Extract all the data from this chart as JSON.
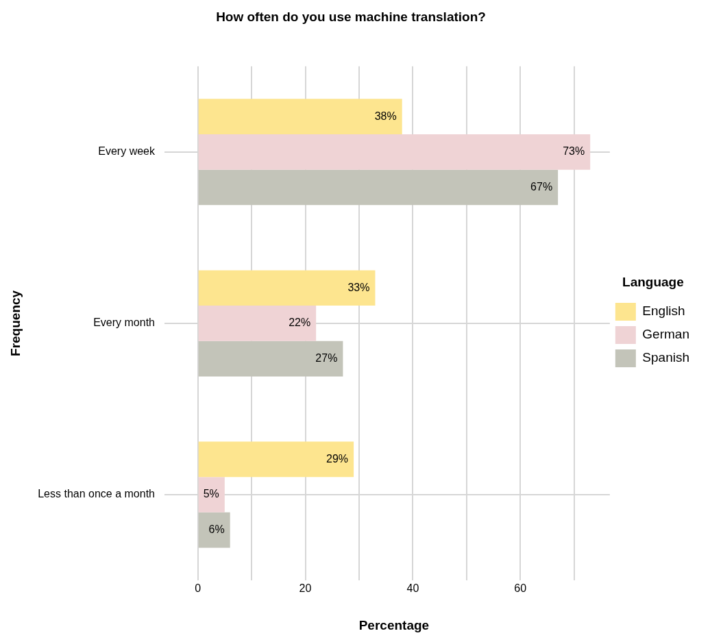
{
  "chart_data": {
    "type": "bar",
    "orientation": "horizontal",
    "title": "How often do you use machine translation?",
    "xlabel": "Percentage",
    "ylabel": "Frequency",
    "legend_title": "Language",
    "legend": "right",
    "grid": true,
    "categories": [
      "Every week",
      "Every month",
      "Less than once a month"
    ],
    "series": [
      {
        "name": "English",
        "color": "#fde58f",
        "values": [
          38,
          33,
          29
        ],
        "value_labels": [
          "38%",
          "33%",
          "29%"
        ]
      },
      {
        "name": "German",
        "color": "#efd3d5",
        "values": [
          73,
          22,
          5
        ],
        "value_labels": [
          "73%",
          "22%",
          "5%"
        ]
      },
      {
        "name": "Spanish",
        "color": "#c3c4b9",
        "values": [
          67,
          27,
          6
        ],
        "value_labels": [
          "67%",
          "27%",
          "6%"
        ]
      }
    ],
    "xlim": [
      -3.65,
      76.65
    ],
    "xticks": [
      0,
      {
        "value": 10,
        "label": null
      },
      20,
      {
        "value": 30,
        "label": null
      },
      40,
      {
        "value": 50,
        "label": null
      },
      60,
      {
        "value": 70,
        "label": null
      }
    ]
  }
}
